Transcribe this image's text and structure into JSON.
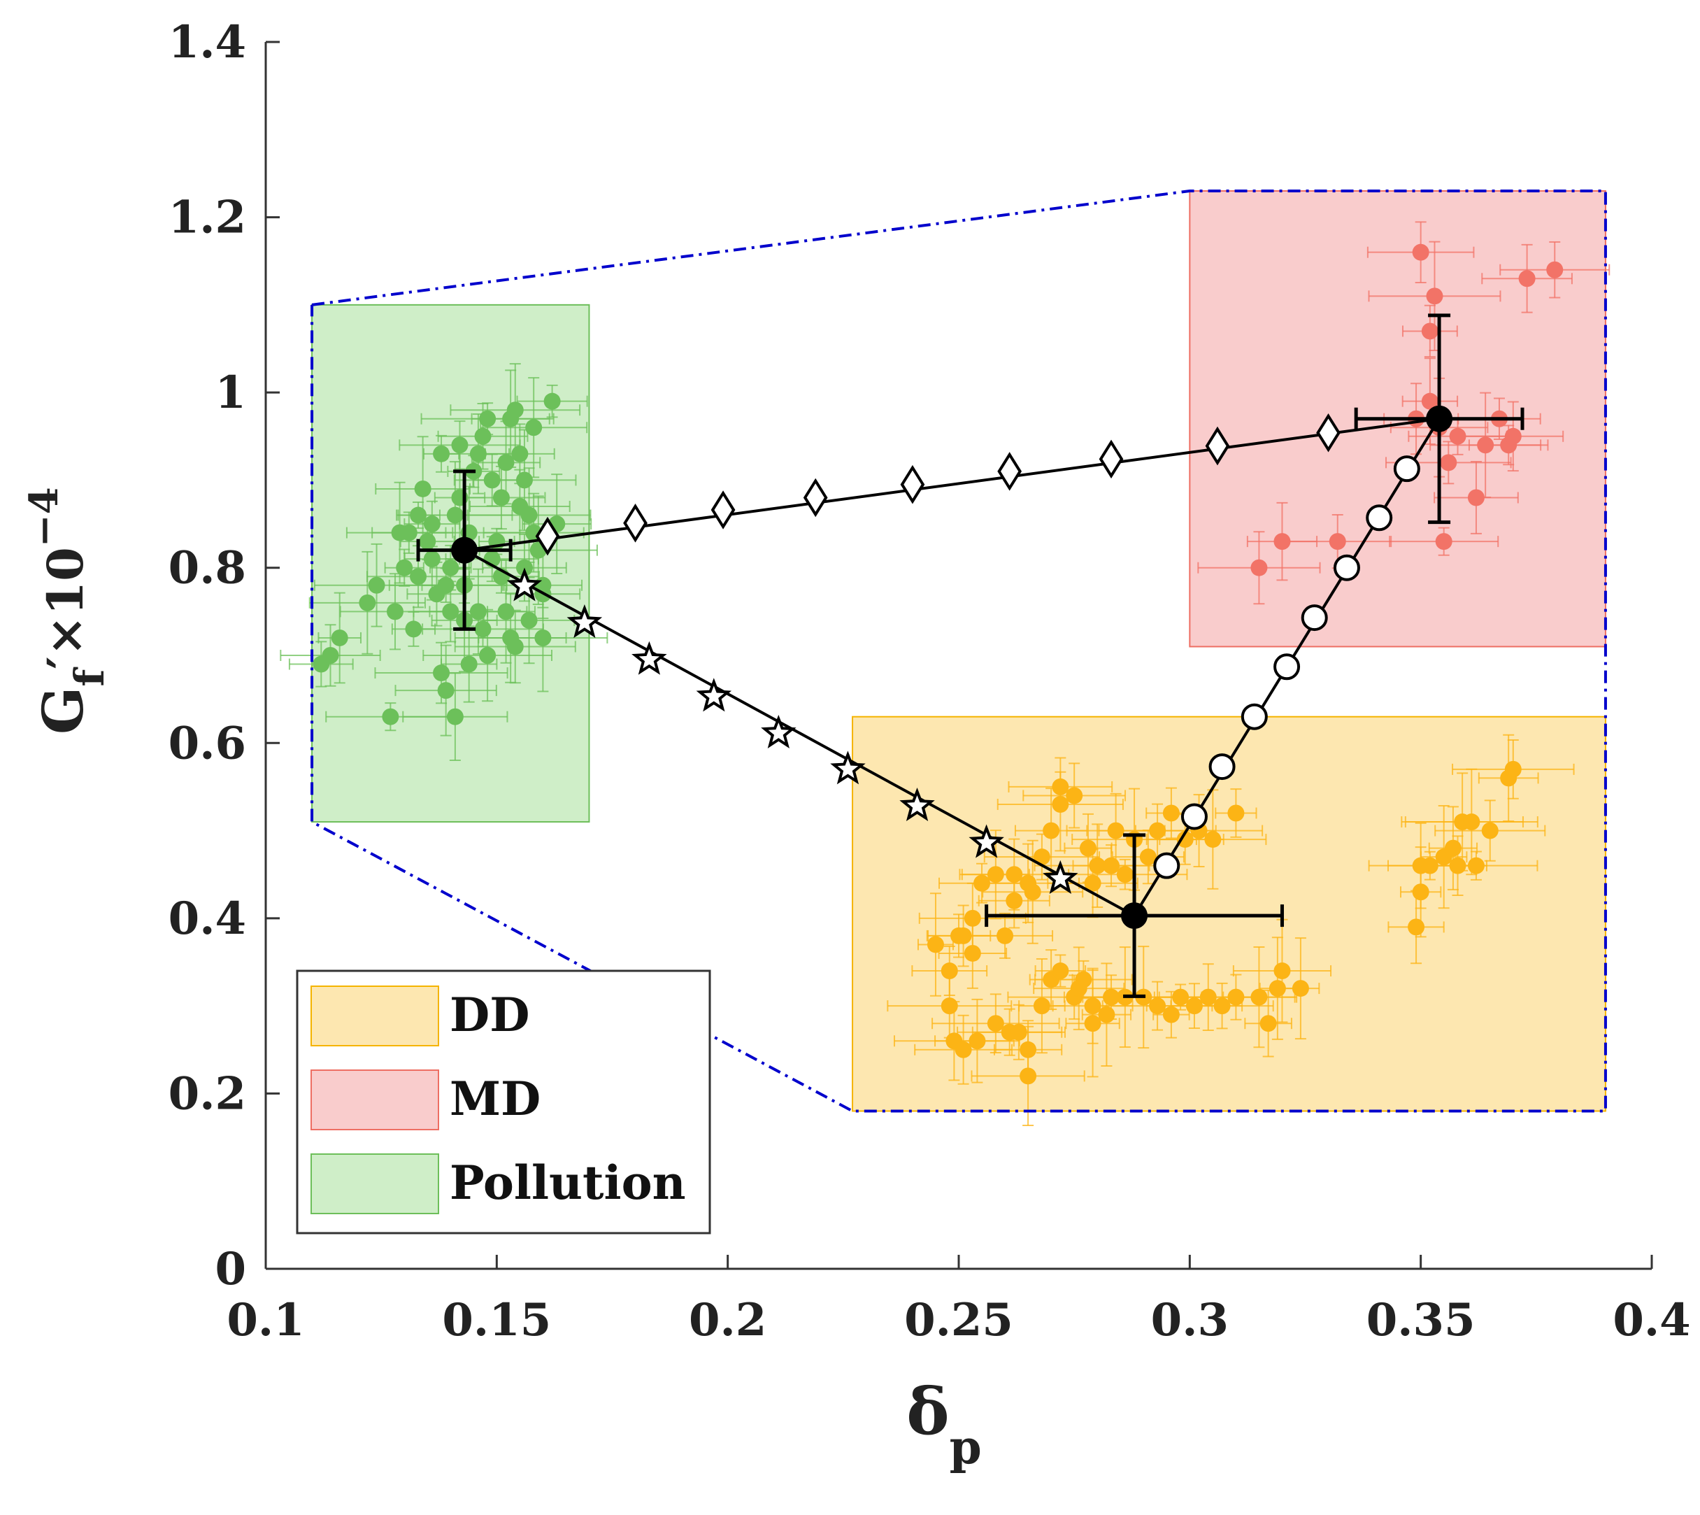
{
  "chart_data": {
    "type": "scatter",
    "title": "",
    "xlabel": "δp",
    "xlabel_main": "δ",
    "xlabel_sub": "p",
    "ylabel": "Gf′×10−4",
    "ylabel_main": "G",
    "ylabel_sub": "f",
    "ylabel_rest": "′×10",
    "ylabel_exp": "−4",
    "xlim": [
      0.1,
      0.4
    ],
    "ylim": [
      0,
      1.4
    ],
    "xticks": [
      "0.1",
      "0.15",
      "0.2",
      "0.25",
      "0.3",
      "0.35",
      "0.4"
    ],
    "xtick_values": [
      0.1,
      0.15,
      0.2,
      0.25,
      0.3,
      0.35,
      0.4
    ],
    "yticks": [
      "0",
      "0.2",
      "0.4",
      "0.6",
      "0.8",
      "1",
      "1.2",
      "1.4"
    ],
    "ytick_values": [
      0,
      0.2,
      0.4,
      0.6,
      0.8,
      1.0,
      1.2,
      1.4
    ],
    "legend": {
      "position": "bottom-left",
      "entries": [
        {
          "label": "DD",
          "fill": "#fde7b0",
          "stroke": "#f5b400"
        },
        {
          "label": "MD",
          "fill": "#f9cccc",
          "stroke": "#ee6e63"
        },
        {
          "label": "Pollution",
          "fill": "#cfeec8",
          "stroke": "#6dbf5a"
        }
      ]
    },
    "colors": {
      "DD": "#fcb415",
      "MD": "#f27367",
      "Pollution": "#6cc05a",
      "envelope": "#0000cc",
      "path": "#000000"
    },
    "regions": [
      {
        "name": "DD",
        "x": [
          0.227,
          0.39
        ],
        "y": [
          0.18,
          0.63
        ]
      },
      {
        "name": "MD",
        "x": [
          0.3,
          0.39
        ],
        "y": [
          0.71,
          1.23
        ]
      },
      {
        "name": "Pollution",
        "x": [
          0.11,
          0.17
        ],
        "y": [
          0.51,
          1.1
        ]
      }
    ],
    "envelope": {
      "style": "dash-dot",
      "points": [
        [
          0.11,
          1.1
        ],
        [
          0.3,
          1.23
        ],
        [
          0.39,
          1.23
        ],
        [
          0.39,
          0.18
        ],
        [
          0.227,
          0.18
        ],
        [
          0.11,
          0.51
        ],
        [
          0.11,
          1.1
        ]
      ]
    },
    "centroids": [
      {
        "name": "Pollution",
        "x": 0.143,
        "y": 0.82,
        "xerr": 0.01,
        "yerr": 0.09
      },
      {
        "name": "DD",
        "x": 0.288,
        "y": 0.403,
        "xerr": 0.032,
        "yerr": 0.092
      },
      {
        "name": "MD",
        "x": 0.354,
        "y": 0.97,
        "xerr": 0.018,
        "yerr": 0.118
      }
    ],
    "mixing_lines": [
      {
        "name": "Pollution-MD",
        "marker": "diamond",
        "x": [
          0.161,
          0.18,
          0.199,
          0.219,
          0.24,
          0.261,
          0.283,
          0.306,
          0.33
        ],
        "y": [
          0.836,
          0.851,
          0.866,
          0.88,
          0.895,
          0.91,
          0.924,
          0.939,
          0.954
        ]
      },
      {
        "name": "Pollution-DD",
        "marker": "star",
        "x": [
          0.156,
          0.169,
          0.183,
          0.197,
          0.211,
          0.226,
          0.241,
          0.256,
          0.272
        ],
        "y": [
          0.779,
          0.737,
          0.695,
          0.653,
          0.611,
          0.57,
          0.528,
          0.486,
          0.445
        ]
      },
      {
        "name": "DD-MD",
        "marker": "circle",
        "x": [
          0.295,
          0.301,
          0.307,
          0.314,
          0.321,
          0.327,
          0.334,
          0.341,
          0.347
        ],
        "y": [
          0.46,
          0.516,
          0.573,
          0.63,
          0.687,
          0.743,
          0.8,
          0.857,
          0.913
        ]
      }
    ],
    "series": [
      {
        "name": "DD",
        "points": [
          [
            0.245,
            0.37
          ],
          [
            0.25,
            0.38
          ],
          [
            0.253,
            0.4
          ],
          [
            0.258,
            0.45
          ],
          [
            0.262,
            0.45
          ],
          [
            0.265,
            0.44
          ],
          [
            0.268,
            0.47
          ],
          [
            0.27,
            0.5
          ],
          [
            0.272,
            0.55
          ],
          [
            0.275,
            0.54
          ],
          [
            0.272,
            0.53
          ],
          [
            0.278,
            0.48
          ],
          [
            0.28,
            0.46
          ],
          [
            0.284,
            0.5
          ],
          [
            0.288,
            0.49
          ],
          [
            0.291,
            0.47
          ],
          [
            0.293,
            0.5
          ],
          [
            0.296,
            0.52
          ],
          [
            0.299,
            0.49
          ],
          [
            0.302,
            0.5
          ],
          [
            0.305,
            0.49
          ],
          [
            0.31,
            0.52
          ],
          [
            0.279,
            0.44
          ],
          [
            0.283,
            0.46
          ],
          [
            0.286,
            0.45
          ],
          [
            0.262,
            0.42
          ],
          [
            0.266,
            0.43
          ],
          [
            0.255,
            0.44
          ],
          [
            0.248,
            0.34
          ],
          [
            0.251,
            0.38
          ],
          [
            0.253,
            0.36
          ],
          [
            0.26,
            0.38
          ],
          [
            0.248,
            0.3
          ],
          [
            0.249,
            0.26
          ],
          [
            0.251,
            0.25
          ],
          [
            0.254,
            0.26
          ],
          [
            0.258,
            0.28
          ],
          [
            0.261,
            0.27
          ],
          [
            0.263,
            0.27
          ],
          [
            0.265,
            0.25
          ],
          [
            0.265,
            0.22
          ],
          [
            0.268,
            0.3
          ],
          [
            0.27,
            0.33
          ],
          [
            0.272,
            0.34
          ],
          [
            0.275,
            0.31
          ],
          [
            0.277,
            0.33
          ],
          [
            0.279,
            0.3
          ],
          [
            0.282,
            0.29
          ],
          [
            0.286,
            0.31
          ],
          [
            0.29,
            0.31
          ],
          [
            0.293,
            0.3
          ],
          [
            0.296,
            0.29
          ],
          [
            0.298,
            0.31
          ],
          [
            0.301,
            0.3
          ],
          [
            0.304,
            0.31
          ],
          [
            0.307,
            0.3
          ],
          [
            0.31,
            0.31
          ],
          [
            0.315,
            0.31
          ],
          [
            0.317,
            0.28
          ],
          [
            0.319,
            0.32
          ],
          [
            0.32,
            0.34
          ],
          [
            0.324,
            0.32
          ],
          [
            0.279,
            0.28
          ],
          [
            0.276,
            0.32
          ],
          [
            0.283,
            0.31
          ],
          [
            0.349,
            0.39
          ],
          [
            0.35,
            0.43
          ],
          [
            0.35,
            0.46
          ],
          [
            0.352,
            0.46
          ],
          [
            0.355,
            0.47
          ],
          [
            0.357,
            0.48
          ],
          [
            0.362,
            0.46
          ],
          [
            0.359,
            0.51
          ],
          [
            0.361,
            0.51
          ],
          [
            0.365,
            0.5
          ],
          [
            0.369,
            0.56
          ],
          [
            0.37,
            0.57
          ],
          [
            0.358,
            0.46
          ]
        ]
      },
      {
        "name": "MD",
        "points": [
          [
            0.315,
            0.8
          ],
          [
            0.32,
            0.83
          ],
          [
            0.332,
            0.83
          ],
          [
            0.35,
            1.16
          ],
          [
            0.352,
            1.07
          ],
          [
            0.353,
            1.11
          ],
          [
            0.354,
            0.96
          ],
          [
            0.356,
            0.92
          ],
          [
            0.358,
            0.95
          ],
          [
            0.362,
            0.88
          ],
          [
            0.364,
            0.94
          ],
          [
            0.367,
            0.97
          ],
          [
            0.369,
            0.94
          ],
          [
            0.37,
            0.95
          ],
          [
            0.373,
            1.13
          ],
          [
            0.379,
            1.14
          ],
          [
            0.355,
            0.83
          ],
          [
            0.349,
            0.97
          ],
          [
            0.352,
            0.99
          ]
        ]
      },
      {
        "name": "Pollution",
        "points": [
          [
            0.112,
            0.69
          ],
          [
            0.114,
            0.7
          ],
          [
            0.116,
            0.72
          ],
          [
            0.122,
            0.76
          ],
          [
            0.124,
            0.78
          ],
          [
            0.127,
            0.63
          ],
          [
            0.128,
            0.75
          ],
          [
            0.129,
            0.84
          ],
          [
            0.13,
            0.8
          ],
          [
            0.132,
            0.73
          ],
          [
            0.133,
            0.86
          ],
          [
            0.134,
            0.89
          ],
          [
            0.135,
            0.83
          ],
          [
            0.136,
            0.81
          ],
          [
            0.137,
            0.77
          ],
          [
            0.138,
            0.68
          ],
          [
            0.139,
            0.66
          ],
          [
            0.14,
            0.75
          ],
          [
            0.14,
            0.8
          ],
          [
            0.141,
            0.86
          ],
          [
            0.142,
            0.88
          ],
          [
            0.143,
            0.78
          ],
          [
            0.144,
            0.69
          ],
          [
            0.145,
            0.91
          ],
          [
            0.146,
            0.93
          ],
          [
            0.147,
            0.95
          ],
          [
            0.148,
            0.97
          ],
          [
            0.149,
            0.9
          ],
          [
            0.15,
            0.83
          ],
          [
            0.151,
            0.79
          ],
          [
            0.152,
            0.75
          ],
          [
            0.153,
            0.72
          ],
          [
            0.153,
            0.97
          ],
          [
            0.154,
            0.98
          ],
          [
            0.155,
            0.87
          ],
          [
            0.155,
            0.93
          ],
          [
            0.156,
            0.8
          ],
          [
            0.157,
            0.74
          ],
          [
            0.158,
            0.84
          ],
          [
            0.158,
            0.96
          ],
          [
            0.159,
            0.82
          ],
          [
            0.16,
            0.78
          ],
          [
            0.16,
            0.72
          ],
          [
            0.162,
            0.99
          ],
          [
            0.163,
            0.85
          ],
          [
            0.141,
            0.63
          ],
          [
            0.148,
            0.7
          ],
          [
            0.136,
            0.85
          ],
          [
            0.139,
            0.78
          ],
          [
            0.144,
            0.84
          ],
          [
            0.146,
            0.75
          ],
          [
            0.151,
            0.88
          ],
          [
            0.154,
            0.71
          ],
          [
            0.142,
            0.94
          ],
          [
            0.133,
            0.79
          ],
          [
            0.131,
            0.84
          ],
          [
            0.149,
            0.81
          ],
          [
            0.157,
            0.86
          ],
          [
            0.152,
            0.92
          ],
          [
            0.147,
            0.73
          ],
          [
            0.143,
            0.74
          ],
          [
            0.138,
            0.93
          ],
          [
            0.16,
            0.77
          ],
          [
            0.156,
            0.9
          ]
        ]
      }
    ]
  }
}
